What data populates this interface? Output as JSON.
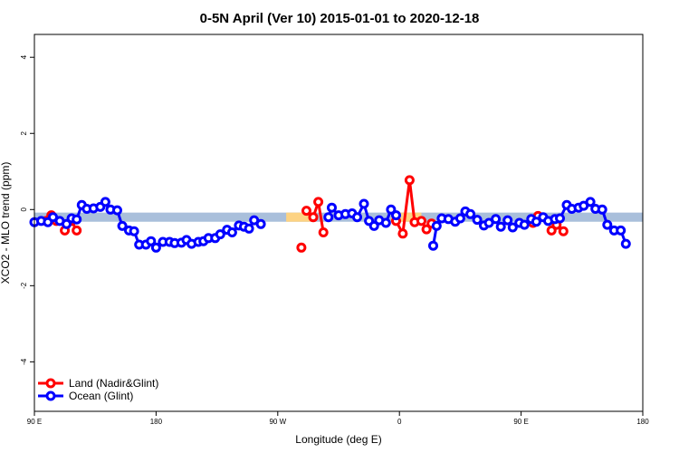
{
  "chart_data": {
    "type": "line",
    "title": "0-5N April (Ver 10)   2015-01-01 to 2020-12-18",
    "xlabel": "Longitude (deg E)",
    "ylabel": "XCO2 - MLO trend (ppm)",
    "xlim": [
      90,
      450
    ],
    "ylim": [
      -5.3,
      4.6
    ],
    "x_ticks": [
      {
        "value": 90,
        "label": "90 E"
      },
      {
        "value": 162,
        "label": "180"
      },
      {
        "value": 234,
        "label": "90 W"
      },
      {
        "value": 306,
        "label": "0"
      },
      {
        "value": 378,
        "label": "90 E"
      },
      {
        "value": 450,
        "label": "180"
      }
    ],
    "y_ticks": [
      {
        "value": -4,
        "label": "-4"
      },
      {
        "value": -2,
        "label": "-2"
      },
      {
        "value": 0,
        "label": "0"
      },
      {
        "value": 2,
        "label": "2"
      },
      {
        "value": 4,
        "label": "4"
      }
    ],
    "band": {
      "y_min": -0.32,
      "y_max": -0.08,
      "color": "#a9bfdb",
      "highlight_color": "#fdd383",
      "highlight_ranges": [
        [
          239,
          254
        ],
        [
          301,
          319
        ]
      ]
    },
    "legend_position": "bottom-left",
    "series": [
      {
        "name": "Land (Nadir&Glint)",
        "color": "#ff0000",
        "segments": [
          [
            [
              97,
              -0.3
            ],
            [
              100,
              -0.15
            ],
            [
              103,
              -0.3
            ]
          ],
          [
            [
              108,
              -0.55
            ],
            [
              112,
              -0.3
            ],
            [
              115,
              -0.55
            ]
          ],
          [
            [
              248,
              -1.0
            ]
          ],
          [
            [
              251,
              -0.03
            ],
            [
              255,
              -0.2
            ],
            [
              258,
              0.2
            ],
            [
              261,
              -0.6
            ]
          ],
          [
            [
              304,
              -0.3
            ],
            [
              308,
              -0.63
            ],
            [
              312,
              0.77
            ],
            [
              315,
              -0.33
            ],
            [
              319,
              -0.3
            ],
            [
              322,
              -0.52
            ],
            [
              325,
              -0.37
            ]
          ],
          [
            [
              385,
              -0.35
            ],
            [
              388,
              -0.17
            ]
          ],
          [
            [
              396,
              -0.55
            ],
            [
              399,
              -0.4
            ],
            [
              403,
              -0.57
            ]
          ]
        ]
      },
      {
        "name": "Ocean (Glint)",
        "color": "#0000ff",
        "segments": [
          [
            [
              90,
              -0.33
            ],
            [
              94,
              -0.3
            ],
            [
              98,
              -0.33
            ],
            [
              101,
              -0.2
            ],
            [
              105,
              -0.3
            ],
            [
              109,
              -0.38
            ],
            [
              112,
              -0.23
            ],
            [
              115,
              -0.26
            ],
            [
              118,
              0.12
            ],
            [
              121,
              0.02
            ],
            [
              125,
              0.03
            ],
            [
              129,
              0.07
            ],
            [
              132,
              0.2
            ],
            [
              135,
              0.0
            ],
            [
              139,
              -0.02
            ],
            [
              142,
              -0.43
            ],
            [
              146,
              -0.55
            ],
            [
              149,
              -0.57
            ],
            [
              152,
              -0.92
            ],
            [
              156,
              -0.92
            ],
            [
              159,
              -0.83
            ],
            [
              162,
              -1.0
            ],
            [
              166,
              -0.85
            ],
            [
              170,
              -0.85
            ],
            [
              173,
              -0.88
            ],
            [
              177,
              -0.87
            ],
            [
              180,
              -0.8
            ],
            [
              183,
              -0.9
            ],
            [
              187,
              -0.85
            ],
            [
              190,
              -0.83
            ],
            [
              193,
              -0.75
            ],
            [
              197,
              -0.75
            ],
            [
              200,
              -0.65
            ],
            [
              204,
              -0.53
            ],
            [
              207,
              -0.6
            ],
            [
              211,
              -0.42
            ],
            [
              214,
              -0.45
            ],
            [
              217,
              -0.5
            ],
            [
              220,
              -0.28
            ],
            [
              224,
              -0.38
            ]
          ],
          [
            [
              264,
              -0.2
            ],
            [
              266,
              0.05
            ],
            [
              270,
              -0.15
            ],
            [
              274,
              -0.12
            ],
            [
              278,
              -0.1
            ],
            [
              281,
              -0.2
            ],
            [
              285,
              0.15
            ],
            [
              288,
              -0.3
            ],
            [
              291,
              -0.43
            ],
            [
              294,
              -0.28
            ],
            [
              298,
              -0.35
            ],
            [
              301,
              0.0
            ],
            [
              304,
              -0.15
            ]
          ],
          [
            [
              326,
              -0.95
            ],
            [
              328,
              -0.43
            ],
            [
              331,
              -0.23
            ],
            [
              335,
              -0.25
            ],
            [
              339,
              -0.32
            ],
            [
              342,
              -0.23
            ],
            [
              345,
              -0.05
            ],
            [
              348,
              -0.12
            ],
            [
              352,
              -0.27
            ],
            [
              356,
              -0.42
            ],
            [
              359,
              -0.35
            ],
            [
              363,
              -0.25
            ],
            [
              366,
              -0.45
            ],
            [
              370,
              -0.28
            ],
            [
              373,
              -0.47
            ],
            [
              377,
              -0.35
            ],
            [
              380,
              -0.4
            ],
            [
              384,
              -0.25
            ],
            [
              387,
              -0.32
            ],
            [
              391,
              -0.2
            ],
            [
              394,
              -0.3
            ],
            [
              398,
              -0.25
            ],
            [
              401,
              -0.23
            ],
            [
              405,
              0.12
            ],
            [
              408,
              0.02
            ],
            [
              412,
              0.05
            ],
            [
              415,
              0.1
            ],
            [
              419,
              0.2
            ],
            [
              422,
              0.02
            ],
            [
              426,
              0.0
            ],
            [
              429,
              -0.4
            ],
            [
              433,
              -0.55
            ],
            [
              437,
              -0.55
            ],
            [
              440,
              -0.9
            ]
          ]
        ]
      }
    ]
  }
}
